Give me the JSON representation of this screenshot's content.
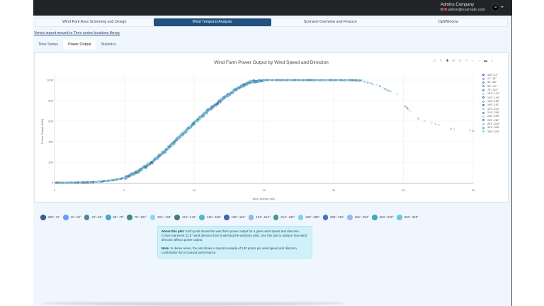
{
  "header": {
    "company": "Admins Company",
    "email": "admin@example.com",
    "avatar_initial": "a"
  },
  "nav": {
    "tabs": [
      {
        "label": "Wind Park Area Screening and Design",
        "active": false
      },
      {
        "label": "Wind Temporal Analysis",
        "active": true
      },
      {
        "label": "Scenario Overview and Finance",
        "active": false
      },
      {
        "label": "OptiWindow",
        "active": false
      }
    ]
  },
  "notice": {
    "link_text": "Vortex import moved to Time series locations library"
  },
  "subtabs": [
    {
      "label": "Time Series",
      "active": false
    },
    {
      "label": "Power Output",
      "active": true
    },
    {
      "label": "Statistics",
      "active": false
    }
  ],
  "modebar": {
    "icons": [
      "camera-icon",
      "zoom-icon",
      "pan-icon",
      "box-select-icon",
      "lasso-select-icon",
      "zoom-in-icon",
      "zoom-out-icon",
      "autoscale-icon",
      "reset-axes-icon",
      "spike-lines-icon",
      "hover-closest-icon",
      "hover-compare-icon"
    ]
  },
  "chart_data": {
    "type": "scatter",
    "title": "Wind Farm Power Output by Wind Speed and Direction",
    "xlabel": "Wind Speed (m/s)",
    "ylabel": "Power Output (MW)",
    "xlim": [
      0,
      30
    ],
    "ylim": [
      0,
      1050
    ],
    "x_ticks": [
      0,
      5,
      10,
      15,
      20,
      25,
      30
    ],
    "y_ticks": [
      0,
      200,
      400,
      600,
      800,
      1000
    ],
    "grid": true,
    "legend_position": "right",
    "series_names": [
      "349°–11°",
      "11°–34°",
      "34°–56°",
      "56°–79°",
      "79°–101°",
      "101°–124°",
      "124°–146°",
      "146°–169°",
      "169°–191°",
      "191°–214°",
      "214°–236°",
      "236°–259°",
      "259°–281°",
      "281°–304°",
      "304°–326°",
      "326°–349°"
    ],
    "power_curve": {
      "x": [
        0,
        1,
        2,
        3,
        4,
        5,
        6,
        7,
        8,
        9,
        10,
        11,
        12,
        13,
        14,
        15,
        16,
        17,
        18,
        19,
        20,
        21,
        22,
        23,
        24,
        24.5,
        25,
        25.5,
        26,
        27,
        28,
        29,
        30
      ],
      "y": [
        0,
        0,
        2,
        8,
        20,
        45,
        110,
        200,
        320,
        450,
        580,
        700,
        810,
        910,
        980,
        1000,
        1000,
        1000,
        1000,
        1000,
        1000,
        1000,
        995,
        940,
        870,
        760,
        720,
        640,
        590,
        550,
        540,
        520,
        515
      ]
    }
  },
  "legend_bottom": [
    {
      "label": "349°–11°",
      "color": "#3a5a94"
    },
    {
      "label": "11°–34°",
      "color": "#6b9ef2"
    },
    {
      "label": "34°–56°",
      "color": "#4a8896"
    },
    {
      "label": "56°–79°",
      "color": "#4ea3c9"
    },
    {
      "label": "79°–101°",
      "color": "#3f8b7a"
    },
    {
      "label": "101°–124°",
      "color": "#8fd9ee"
    },
    {
      "label": "124°–146°",
      "color": "#3e7f80"
    },
    {
      "label": "146°–169°",
      "color": "#55b6c8"
    },
    {
      "label": "169°–191°",
      "color": "#3f67a8"
    },
    {
      "label": "191°–214°",
      "color": "#8db8ef"
    },
    {
      "label": "214°–236°",
      "color": "#4a9396"
    },
    {
      "label": "236°–259°",
      "color": "#7fd7e6"
    },
    {
      "label": "259°–281°",
      "color": "#4470c0"
    },
    {
      "label": "281°–304°",
      "color": "#98b9f0"
    },
    {
      "label": "304°–326°",
      "color": "#4ca4b2"
    },
    {
      "label": "326°–349°",
      "color": "#62c9de"
    }
  ],
  "info": {
    "about_title": "About this plot:",
    "about_text": " Each point shows the wind farm power output for a given wind speed and direction. Colors represent 22.5° wind direction bins (matching the windrose plot). Use this plot to analyze how wind direction affects power output.",
    "note_title": "Note:",
    "note_text": " In dense areas, the plot shows a random sample of 100 points per wind speed and direction combination for increased performance."
  }
}
